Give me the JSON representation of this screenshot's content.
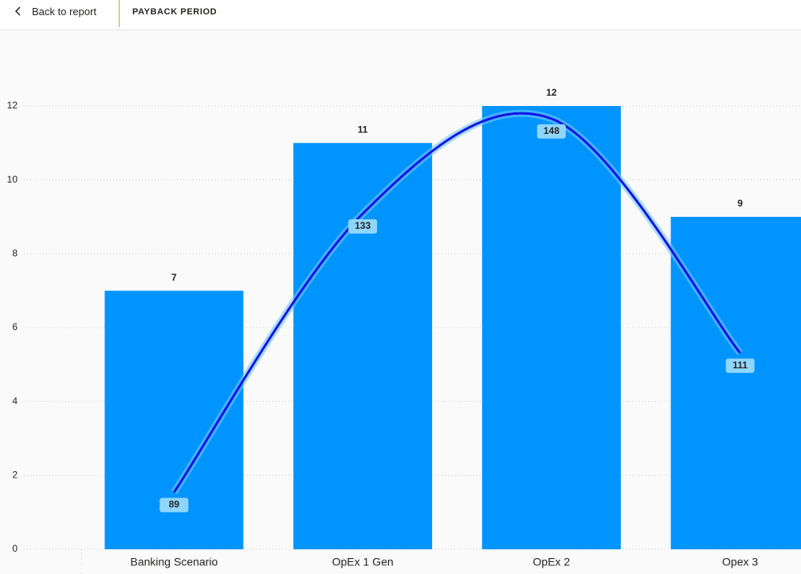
{
  "header": {
    "back": "Back to report",
    "title": "PAYBACK PERIOD"
  },
  "chart_data": {
    "type": "combo",
    "categories": [
      "Banking Scenario",
      "OpEx 1 Gen",
      "OpEx 2",
      "Opex 3"
    ],
    "series": [
      {
        "type": "bar",
        "color": "#0094ff",
        "values": [
          7,
          11,
          12,
          9
        ]
      },
      {
        "type": "line",
        "color": "#1414e6",
        "axis": "y2",
        "values": [
          89,
          133,
          148,
          111
        ]
      }
    ],
    "ylim": [
      0,
      12
    ],
    "yticks": [
      0,
      2,
      4,
      6,
      8,
      10,
      12
    ],
    "y2lim": [
      80,
      150
    ],
    "grid": true
  }
}
